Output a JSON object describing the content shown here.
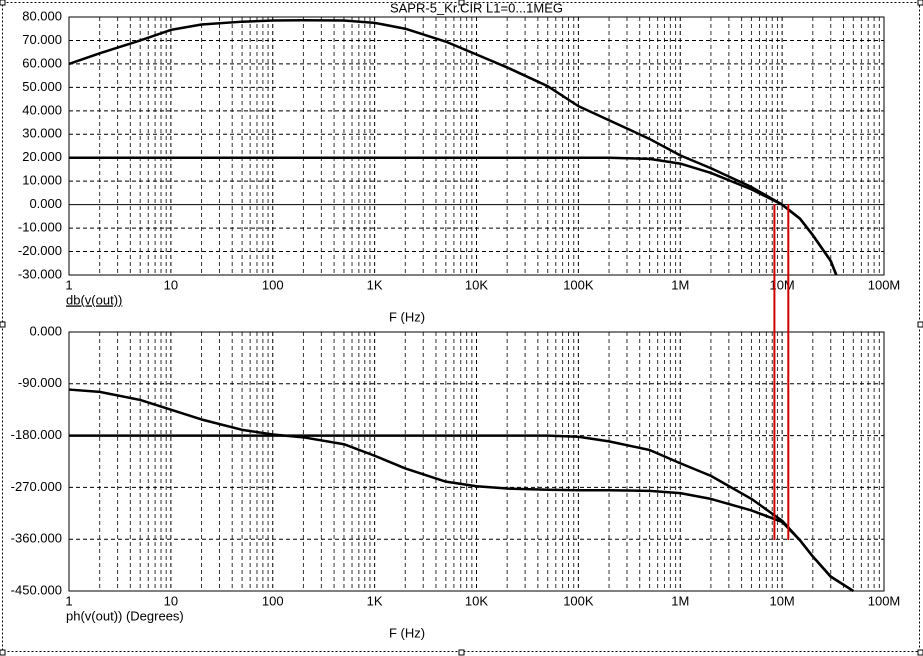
{
  "chart_data": [
    {
      "type": "line",
      "title": "SAPR-5_Kr.CIR L1=0...1MEG",
      "y_label": "db(v(out))",
      "x_label": "F (Hz)",
      "log_x": true,
      "grid": true,
      "xlim": [
        1,
        100000000
      ],
      "xticks": [
        1,
        10,
        100,
        {
          "value": 1000,
          "label": "1K"
        },
        {
          "value": 10000,
          "label": "10K"
        },
        {
          "value": 100000,
          "label": "100K"
        },
        {
          "value": 1000000,
          "label": "1M"
        },
        {
          "value": 10000000,
          "label": "10M"
        },
        {
          "value": 100000000,
          "label": "100M"
        }
      ],
      "ylim": [
        -30,
        80
      ],
      "yticks": [
        {
          "value": 80,
          "label": "80.000"
        },
        {
          "value": 70,
          "label": "70.000"
        },
        {
          "value": 60,
          "label": "60.000"
        },
        {
          "value": 50,
          "label": "50.000"
        },
        {
          "value": 40,
          "label": "40.000"
        },
        {
          "value": 30,
          "label": "30.000"
        },
        {
          "value": 20,
          "label": "20.000"
        },
        {
          "value": 10,
          "label": "10.000"
        },
        {
          "value": 0,
          "label": "0.000"
        },
        {
          "value": -10,
          "label": "-10.000"
        },
        {
          "value": -20,
          "label": "-20.000"
        },
        {
          "value": -30,
          "label": "-30.000"
        }
      ],
      "x": [
        1,
        2,
        5,
        10,
        20,
        50,
        100,
        200,
        500,
        1000,
        2000,
        5000,
        10000,
        20000,
        50000,
        100000,
        200000,
        500000,
        1000000,
        2000000,
        5000000,
        10000000,
        15000000,
        20000000,
        30000000,
        34000000
      ],
      "series": [
        {
          "color": "#000000",
          "values": [
            60,
            64.5,
            70,
            74.5,
            76.8,
            78,
            78.5,
            78.6,
            78.5,
            77.5,
            75,
            69.5,
            64,
            58.5,
            50.5,
            42,
            36,
            28,
            21,
            15.5,
            7.5,
            0,
            -6,
            -13,
            -24,
            -30
          ]
        },
        {
          "color": "#000000",
          "values": [
            20,
            20,
            20,
            20,
            20,
            20,
            20,
            20,
            20,
            20,
            20,
            20,
            20,
            20,
            20,
            20,
            20,
            19.5,
            17.5,
            13.5,
            6.5,
            0,
            -6,
            -13,
            -24,
            -30
          ]
        }
      ],
      "cursors": [
        8400000,
        11500000
      ],
      "cursor_color": "#cc0000"
    },
    {
      "type": "line",
      "y_label": "ph(v(out)) (Degrees)",
      "x_label": "F (Hz)",
      "log_x": true,
      "grid": true,
      "xlim": [
        1,
        100000000
      ],
      "xticks": [
        1,
        10,
        100,
        {
          "value": 1000,
          "label": "1K"
        },
        {
          "value": 10000,
          "label": "10K"
        },
        {
          "value": 100000,
          "label": "100K"
        },
        {
          "value": 1000000,
          "label": "1M"
        },
        {
          "value": 10000000,
          "label": "10M"
        },
        {
          "value": 100000000,
          "label": "100M"
        }
      ],
      "ylim": [
        -450,
        0
      ],
      "yticks": [
        {
          "value": 0,
          "label": "0.000"
        },
        {
          "value": -90,
          "label": "-90.000"
        },
        {
          "value": -180,
          "label": "-180.000"
        },
        {
          "value": -270,
          "label": "-270.000"
        },
        {
          "value": -360,
          "label": "-360.000"
        },
        {
          "value": -450,
          "label": "-450.000"
        }
      ],
      "x": [
        1,
        2,
        5,
        10,
        20,
        50,
        100,
        200,
        500,
        1000,
        2000,
        5000,
        10000,
        20000,
        50000,
        100000,
        200000,
        500000,
        1000000,
        2000000,
        5000000,
        10000000,
        15000000,
        20000000,
        30000000,
        50000000
      ],
      "series": [
        {
          "color": "#000000",
          "values": [
            -100,
            -104,
            -118,
            -135,
            -152,
            -170,
            -178,
            -183,
            -195,
            -215,
            -237,
            -260,
            -268,
            -272,
            -274,
            -275,
            -275,
            -276,
            -280,
            -290,
            -310,
            -330,
            -362,
            -390,
            -425,
            -450
          ]
        },
        {
          "color": "#000000",
          "values": [
            -180,
            -180,
            -180,
            -180,
            -180,
            -180,
            -180,
            -180,
            -180,
            -180,
            -180,
            -180,
            -180,
            -180,
            -180,
            -182,
            -190,
            -205,
            -228,
            -250,
            -290,
            -328,
            -362,
            -390,
            -425,
            -450
          ]
        }
      ]
    }
  ]
}
